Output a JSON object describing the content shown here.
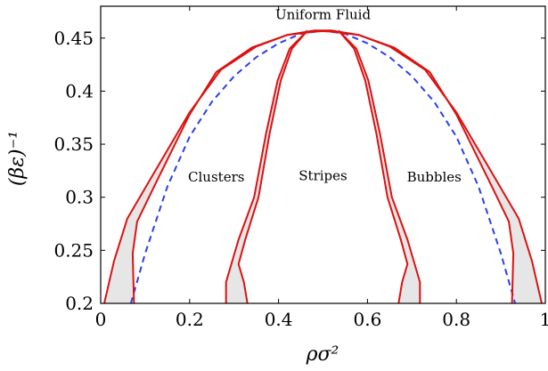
{
  "chart_data": {
    "type": "line",
    "title": "",
    "xlabel": "ρσ²",
    "ylabel": "(βε)⁻¹",
    "xlim": [
      0,
      1
    ],
    "ylim": [
      0.2,
      0.48
    ],
    "x_ticks": [
      0,
      0.2,
      0.4,
      0.6,
      0.8,
      1
    ],
    "x_tick_labels": [
      "0",
      "0.2",
      "0.4",
      "0.6",
      "0.8",
      "1"
    ],
    "y_ticks": [
      0.2,
      0.25,
      0.3,
      0.35,
      0.4,
      0.45
    ],
    "y_tick_labels": [
      "0.2",
      "0.25",
      "0.3",
      "0.35",
      "0.4",
      "0.45"
    ],
    "grid": false,
    "legend": "none",
    "colors": {
      "boundary": "#dd1111",
      "spinodal": "#2b3ff0",
      "fill": "#e6e6e6"
    },
    "region_labels": [
      {
        "text": "Uniform Fluid",
        "x": 0.5,
        "y": 0.468
      },
      {
        "text": "Clusters",
        "x": 0.26,
        "y": 0.315
      },
      {
        "text": "Stripes",
        "x": 0.5,
        "y": 0.316
      },
      {
        "text": "Bubbles",
        "x": 0.75,
        "y": 0.315
      }
    ],
    "spinodal": {
      "style": "dashed",
      "points": [
        [
          0.068,
          0.2
        ],
        [
          0.1,
          0.247
        ],
        [
          0.15,
          0.31
        ],
        [
          0.2,
          0.357
        ],
        [
          0.25,
          0.39
        ],
        [
          0.3,
          0.414
        ],
        [
          0.35,
          0.432
        ],
        [
          0.4,
          0.445
        ],
        [
          0.45,
          0.454
        ],
        [
          0.5,
          0.457
        ],
        [
          0.55,
          0.454
        ],
        [
          0.6,
          0.445
        ],
        [
          0.65,
          0.432
        ],
        [
          0.7,
          0.414
        ],
        [
          0.75,
          0.39
        ],
        [
          0.8,
          0.357
        ],
        [
          0.85,
          0.31
        ],
        [
          0.9,
          0.247
        ],
        [
          0.932,
          0.2
        ]
      ]
    },
    "regions": [
      {
        "outer": [
          [
            0.008,
            0.2
          ],
          [
            0.03,
            0.24
          ],
          [
            0.06,
            0.28
          ],
          [
            0.12,
            0.323
          ],
          [
            0.2,
            0.38
          ],
          [
            0.27,
            0.42
          ],
          [
            0.35,
            0.442
          ],
          [
            0.42,
            0.453
          ],
          [
            0.48,
            0.457
          ],
          [
            0.52,
            0.457
          ]
        ],
        "inner": [
          [
            0.075,
            0.2
          ],
          [
            0.072,
            0.247
          ],
          [
            0.082,
            0.277
          ],
          [
            0.12,
            0.31
          ],
          [
            0.2,
            0.378
          ],
          [
            0.26,
            0.418
          ],
          [
            0.34,
            0.441
          ],
          [
            0.42,
            0.453
          ],
          [
            0.48,
            0.456
          ],
          [
            0.52,
            0.457
          ]
        ]
      },
      {
        "outer": [
          [
            0.992,
            0.2
          ],
          [
            0.97,
            0.24
          ],
          [
            0.94,
            0.28
          ],
          [
            0.88,
            0.323
          ],
          [
            0.8,
            0.38
          ],
          [
            0.73,
            0.42
          ],
          [
            0.65,
            0.442
          ],
          [
            0.58,
            0.453
          ],
          [
            0.52,
            0.457
          ],
          [
            0.48,
            0.457
          ]
        ],
        "inner": [
          [
            0.925,
            0.2
          ],
          [
            0.928,
            0.247
          ],
          [
            0.918,
            0.277
          ],
          [
            0.88,
            0.31
          ],
          [
            0.8,
            0.378
          ],
          [
            0.74,
            0.418
          ],
          [
            0.66,
            0.441
          ],
          [
            0.58,
            0.453
          ],
          [
            0.52,
            0.456
          ],
          [
            0.48,
            0.457
          ]
        ]
      },
      {
        "outer": [
          [
            0.282,
            0.2
          ],
          [
            0.282,
            0.22
          ],
          [
            0.31,
            0.26
          ],
          [
            0.345,
            0.3
          ],
          [
            0.372,
            0.36
          ],
          [
            0.398,
            0.41
          ],
          [
            0.425,
            0.44
          ],
          [
            0.465,
            0.457
          ]
        ],
        "inner": [
          [
            0.33,
            0.2
          ],
          [
            0.322,
            0.22
          ],
          [
            0.31,
            0.237
          ],
          [
            0.325,
            0.26
          ],
          [
            0.355,
            0.3
          ],
          [
            0.38,
            0.36
          ],
          [
            0.405,
            0.41
          ],
          [
            0.43,
            0.44
          ],
          [
            0.465,
            0.457
          ]
        ]
      },
      {
        "outer": [
          [
            0.718,
            0.2
          ],
          [
            0.718,
            0.22
          ],
          [
            0.69,
            0.26
          ],
          [
            0.655,
            0.3
          ],
          [
            0.628,
            0.36
          ],
          [
            0.602,
            0.41
          ],
          [
            0.575,
            0.44
          ],
          [
            0.535,
            0.457
          ]
        ],
        "inner": [
          [
            0.67,
            0.2
          ],
          [
            0.678,
            0.22
          ],
          [
            0.69,
            0.237
          ],
          [
            0.675,
            0.26
          ],
          [
            0.645,
            0.3
          ],
          [
            0.62,
            0.36
          ],
          [
            0.595,
            0.41
          ],
          [
            0.57,
            0.44
          ],
          [
            0.535,
            0.457
          ]
        ]
      }
    ]
  }
}
